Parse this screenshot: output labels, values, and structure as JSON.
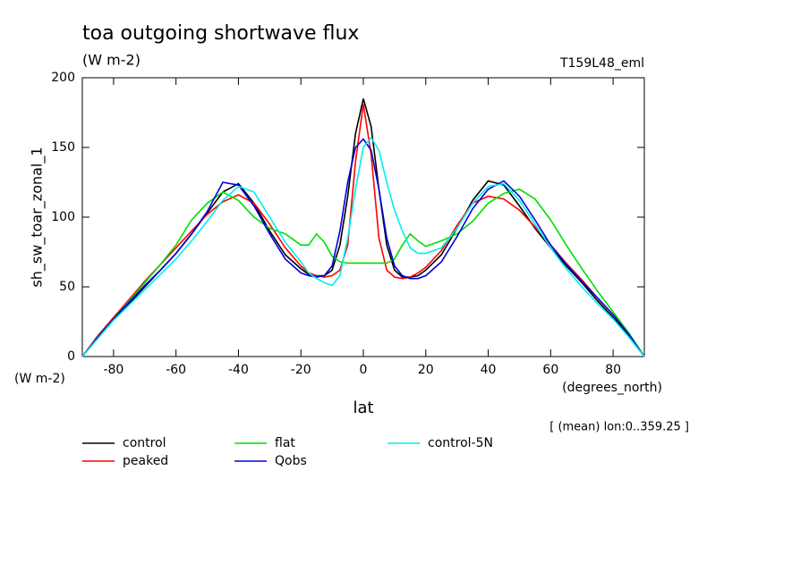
{
  "chart_data": {
    "type": "line",
    "title": "toa outgoing shortwave flux",
    "subtitle": "(W m-2)",
    "run_label": "T159L48_eml",
    "ylabel": "sh_sw_toar_zonal_1",
    "y_units": "(W m-2)",
    "xlabel": "lat",
    "x_units": "(degrees_north)",
    "footnote": "[ (mean) lon:0..359.25 ]",
    "xlim": [
      -90,
      90
    ],
    "xticks": [
      -80,
      -60,
      -40,
      -20,
      0,
      20,
      40,
      60,
      80
    ],
    "ylim": [
      0,
      200
    ],
    "yticks": [
      0,
      50,
      100,
      150,
      200
    ],
    "x": [
      -90,
      -85,
      -80,
      -75,
      -70,
      -65,
      -60,
      -55,
      -50,
      -45,
      -40,
      -35,
      -30,
      -25,
      -20,
      -17.5,
      -15,
      -12.5,
      -10,
      -7.5,
      -5,
      -2.5,
      0,
      2.5,
      5,
      7.5,
      10,
      12.5,
      15,
      17.5,
      20,
      25,
      30,
      35,
      40,
      45,
      50,
      55,
      60,
      65,
      70,
      75,
      80,
      85,
      90
    ],
    "series": [
      {
        "name": "control",
        "color": "#000000",
        "values": [
          0,
          14,
          27,
          38,
          50,
          62,
          74,
          88,
          103,
          118,
          124,
          110,
          90,
          73,
          63,
          59,
          58,
          58,
          62,
          80,
          115,
          160,
          185,
          165,
          120,
          80,
          62,
          57,
          57,
          58,
          62,
          73,
          92,
          112,
          126,
          123,
          108,
          92,
          78,
          65,
          53,
          40,
          28,
          15,
          0
        ]
      },
      {
        "name": "peaked",
        "color": "#ff0000",
        "values": [
          0,
          15,
          28,
          41,
          54,
          66,
          78,
          90,
          102,
          111,
          116,
          110,
          95,
          78,
          65,
          60,
          58,
          57,
          58,
          62,
          80,
          140,
          181,
          145,
          85,
          62,
          57,
          56,
          57,
          60,
          64,
          76,
          94,
          110,
          115,
          113,
          105,
          93,
          80,
          67,
          55,
          42,
          30,
          16,
          0
        ]
      },
      {
        "name": "flat",
        "color": "#00dd00",
        "values": [
          0,
          14,
          27,
          40,
          53,
          66,
          80,
          98,
          110,
          118,
          112,
          100,
          92,
          88,
          80,
          80,
          88,
          82,
          72,
          68,
          67,
          67,
          67,
          67,
          67,
          67,
          70,
          80,
          88,
          83,
          79,
          83,
          88,
          97,
          110,
          117,
          120,
          113,
          98,
          80,
          63,
          47,
          32,
          17,
          0
        ]
      },
      {
        "name": "Qobs",
        "color": "#0000dd",
        "values": [
          0,
          14,
          27,
          39,
          51,
          62,
          74,
          88,
          104,
          125,
          123,
          108,
          88,
          70,
          60,
          58,
          57,
          58,
          65,
          90,
          125,
          150,
          156,
          148,
          120,
          85,
          65,
          58,
          56,
          56,
          58,
          68,
          86,
          106,
          120,
          126,
          115,
          98,
          80,
          66,
          54,
          42,
          30,
          16,
          0
        ]
      },
      {
        "name": "control-5N",
        "color": "#00eeee",
        "values": [
          0,
          13,
          26,
          37,
          48,
          59,
          70,
          83,
          97,
          112,
          122,
          118,
          100,
          82,
          68,
          60,
          56,
          53,
          51,
          58,
          85,
          120,
          150,
          157,
          148,
          125,
          105,
          90,
          78,
          74,
          74,
          78,
          92,
          110,
          122,
          124,
          112,
          95,
          78,
          63,
          50,
          38,
          27,
          14,
          0
        ]
      }
    ]
  }
}
